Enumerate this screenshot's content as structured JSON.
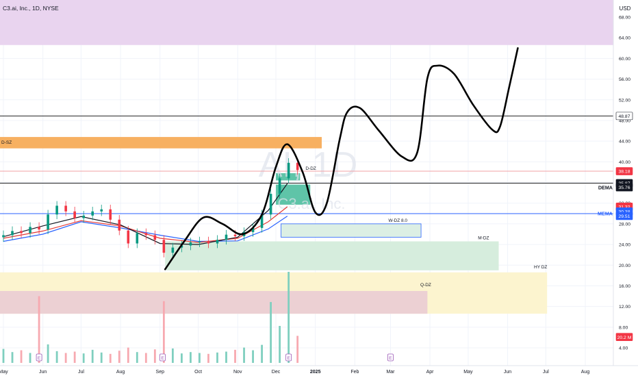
{
  "header": {
    "symbol_title": "C3.ai, Inc., 1D, NYSE",
    "currency": "USD",
    "watermark": "AI, 1D",
    "watermark_sub": "C3.ai, Inc."
  },
  "chart_data": {
    "type": "candlestick",
    "x_labels": [
      {
        "d": "2024-05-01",
        "label": "May"
      },
      {
        "d": "2024-06-01",
        "label": "Jun"
      },
      {
        "d": "2024-07-01",
        "label": "Jul"
      },
      {
        "d": "2024-08-01",
        "label": "Aug"
      },
      {
        "d": "2024-09-01",
        "label": "Sep"
      },
      {
        "d": "2024-10-01",
        "label": "Oct"
      },
      {
        "d": "2024-11-01",
        "label": "Nov"
      },
      {
        "d": "2024-12-01",
        "label": "Dec"
      },
      {
        "d": "2025-01-01",
        "label": "2025"
      },
      {
        "d": "2025-02-01",
        "label": "Feb"
      },
      {
        "d": "2025-03-01",
        "label": "Mar"
      },
      {
        "d": "2025-04-01",
        "label": "Apr"
      },
      {
        "d": "2025-05-01",
        "label": "May"
      },
      {
        "d": "2025-06-01",
        "label": "Jun"
      },
      {
        "d": "2025-07-01",
        "label": "Jul"
      },
      {
        "d": "2025-08-01",
        "label": "Aug"
      }
    ],
    "y_ticks": [
      4,
      8,
      12,
      16,
      20,
      24,
      28,
      32,
      36,
      40,
      44,
      48,
      52,
      56,
      60,
      64,
      68
    ],
    "ylim": [
      1.5,
      71.5
    ],
    "series_close": [
      [
        "2024-05-01",
        25.8
      ],
      [
        "2024-05-08",
        26.6
      ],
      [
        "2024-05-15",
        26.2
      ],
      [
        "2024-05-22",
        27.4
      ],
      [
        "2024-05-29",
        26.9
      ],
      [
        "2024-06-05",
        29.8
      ],
      [
        "2024-06-12",
        31.5
      ],
      [
        "2024-06-19",
        30.4
      ],
      [
        "2024-06-26",
        29.1
      ],
      [
        "2024-07-03",
        29.6
      ],
      [
        "2024-07-10",
        30.4
      ],
      [
        "2024-07-17",
        30.8
      ],
      [
        "2024-07-24",
        28.8
      ],
      [
        "2024-07-31",
        26.7
      ],
      [
        "2024-08-07",
        24.2
      ],
      [
        "2024-08-14",
        26.2
      ],
      [
        "2024-08-21",
        25.8
      ],
      [
        "2024-08-28",
        24.9
      ],
      [
        "2024-09-04",
        22.4
      ],
      [
        "2024-09-11",
        23.4
      ],
      [
        "2024-09-18",
        23.8
      ],
      [
        "2024-09-25",
        24.4
      ],
      [
        "2024-10-02",
        24.6
      ],
      [
        "2024-10-09",
        24.2
      ],
      [
        "2024-10-16",
        24.9
      ],
      [
        "2024-10-23",
        25.9
      ],
      [
        "2024-10-30",
        25.6
      ],
      [
        "2024-11-06",
        26.4
      ],
      [
        "2024-11-13",
        27.2
      ],
      [
        "2024-11-20",
        29.8
      ],
      [
        "2024-11-27",
        33.8
      ],
      [
        "2024-12-04",
        36.8
      ],
      [
        "2024-12-11",
        39.8
      ],
      [
        "2024-12-18",
        38.4
      ]
    ],
    "volume_m": [
      [
        "2024-05-01",
        3.1
      ],
      [
        "2024-05-08",
        2.4
      ],
      [
        "2024-05-15",
        2.8
      ],
      [
        "2024-05-22",
        2.2
      ],
      [
        "2024-05-29",
        14.8
      ],
      [
        "2024-06-05",
        4.1
      ],
      [
        "2024-06-12",
        2.6
      ],
      [
        "2024-06-19",
        2.2
      ],
      [
        "2024-06-26",
        2.5
      ],
      [
        "2024-07-03",
        2.1
      ],
      [
        "2024-07-10",
        2.9
      ],
      [
        "2024-07-17",
        2.3
      ],
      [
        "2024-07-24",
        2.0
      ],
      [
        "2024-07-31",
        2.7
      ],
      [
        "2024-08-07",
        3.4
      ],
      [
        "2024-08-14",
        2.4
      ],
      [
        "2024-08-21",
        2.2
      ],
      [
        "2024-08-28",
        3.0
      ],
      [
        "2024-09-04",
        13.7
      ],
      [
        "2024-09-11",
        3.2
      ],
      [
        "2024-09-18",
        2.1
      ],
      [
        "2024-09-25",
        2.4
      ],
      [
        "2024-10-02",
        2.2
      ],
      [
        "2024-10-09",
        2.0
      ],
      [
        "2024-10-16",
        2.3
      ],
      [
        "2024-10-23",
        2.5
      ],
      [
        "2024-10-30",
        2.9
      ],
      [
        "2024-11-06",
        3.4
      ],
      [
        "2024-11-13",
        2.8
      ],
      [
        "2024-11-20",
        4.0
      ],
      [
        "2024-11-27",
        13.5
      ],
      [
        "2024-12-04",
        8.2
      ],
      [
        "2024-12-11",
        20.2
      ],
      [
        "2024-12-18",
        6.0
      ]
    ],
    "dema_fast_black": [
      [
        "2024-05-01",
        25.5
      ],
      [
        "2024-06-01",
        27.6
      ],
      [
        "2024-07-01",
        29.4
      ],
      [
        "2024-08-01",
        27.8
      ],
      [
        "2024-09-01",
        24.2
      ],
      [
        "2024-10-01",
        24.0
      ],
      [
        "2024-11-01",
        25.4
      ],
      [
        "2024-11-25",
        30.6
      ],
      [
        "2024-12-10",
        35.8
      ]
    ],
    "dema_red": [
      [
        "2024-05-01",
        25.2
      ],
      [
        "2024-06-01",
        26.6
      ],
      [
        "2024-07-01",
        28.6
      ],
      [
        "2024-08-01",
        27.6
      ],
      [
        "2024-09-01",
        25.2
      ],
      [
        "2024-10-01",
        24.4
      ],
      [
        "2024-11-01",
        25.2
      ],
      [
        "2024-11-25",
        28.4
      ],
      [
        "2024-12-10",
        31.3
      ]
    ],
    "ema_blue": [
      [
        "2024-05-01",
        24.6
      ],
      [
        "2024-06-01",
        26.0
      ],
      [
        "2024-07-01",
        28.4
      ],
      [
        "2024-08-01",
        27.2
      ],
      [
        "2024-09-01",
        25.8
      ],
      [
        "2024-10-01",
        24.6
      ],
      [
        "2024-11-01",
        24.7
      ],
      [
        "2024-11-25",
        27.0
      ],
      [
        "2024-12-10",
        29.5
      ]
    ],
    "projection_path": [
      [
        "2024-09-05",
        19.2
      ],
      [
        "2024-09-20",
        24.6
      ],
      [
        "2024-10-05",
        29.2
      ],
      [
        "2024-10-20",
        28.0
      ],
      [
        "2024-11-05",
        26.0
      ],
      [
        "2024-11-20",
        29.8
      ],
      [
        "2024-12-01",
        39.0
      ],
      [
        "2024-12-10",
        43.4
      ],
      [
        "2024-12-22",
        38.0
      ],
      [
        "2025-01-01",
        30.2
      ],
      [
        "2025-01-10",
        32.0
      ],
      [
        "2025-01-20",
        44.2
      ],
      [
        "2025-01-26",
        49.6
      ],
      [
        "2025-02-05",
        50.4
      ],
      [
        "2025-02-20",
        46.0
      ],
      [
        "2025-03-10",
        41.0
      ],
      [
        "2025-03-22",
        41.8
      ],
      [
        "2025-03-30",
        56.2
      ],
      [
        "2025-04-07",
        58.6
      ],
      [
        "2025-04-20",
        57.0
      ],
      [
        "2025-05-05",
        51.0
      ],
      [
        "2025-05-20",
        46.2
      ],
      [
        "2025-05-26",
        46.8
      ],
      [
        "2025-06-02",
        54.2
      ],
      [
        "2025-06-09",
        62.0
      ]
    ],
    "zones": [
      {
        "label": "",
        "from": "2024-04-01",
        "to": "2025-09-30",
        "y_low": 62.6,
        "y_high": 71.5,
        "fill": "#e9d4ef"
      },
      {
        "label": "D-SZ",
        "from": "2024-04-01",
        "to": "2025-01-06",
        "y_low": 42.6,
        "y_high": 44.8,
        "fill": "#f7b061"
      },
      {
        "label": "D-DZ",
        "from": "2024-12-01",
        "to": "2024-12-20",
        "y_low": 36.4,
        "y_high": 37.8,
        "fill": "#5fc4a8"
      },
      {
        "label": "",
        "from": "2024-12-01",
        "to": "2024-12-28",
        "y_low": 31.7,
        "y_high": 35.6,
        "fill": "#5fc4a8"
      },
      {
        "label": "W-DZ 8.0",
        "from": "2024-12-05",
        "to": "2025-03-25",
        "y_low": 25.4,
        "y_high": 28.0,
        "fill": "#dcefe4"
      },
      {
        "label": "M-DZ",
        "from": "2024-09-05",
        "to": "2025-05-25",
        "y_low": 19.0,
        "y_high": 24.6,
        "fill": "#d6eddd"
      },
      {
        "label": "HY DZ",
        "from": "2024-04-01",
        "to": "2025-07-02",
        "y_low": 10.6,
        "y_high": 18.6,
        "fill": "#fcf4cf"
      },
      {
        "label": "Q-DZ",
        "from": "2024-04-01",
        "to": "2025-03-30",
        "y_low": 10.6,
        "y_high": 15.0,
        "fill": "#ecd0d3"
      }
    ],
    "hlines": [
      {
        "y": 48.87,
        "color": "#222222",
        "label": "48.87"
      },
      {
        "y": 38.18,
        "color": "#f2a0a6",
        "label": "38.18"
      },
      {
        "y": 35.87,
        "color": "#222222",
        "label": "35.87"
      },
      {
        "y": 29.97,
        "color": "#2962ff",
        "label": ""
      }
    ],
    "price_tags": [
      {
        "y": 48.87,
        "text": "48.87",
        "bg": "#ffffff",
        "fg": "#131722",
        "border": "#131722"
      },
      {
        "y": 38.18,
        "text": "38.18",
        "bg": "#f23645",
        "fg": "#ffffff",
        "border": "#f23645"
      },
      {
        "y": 35.87,
        "text": "35.87",
        "bg": "#131722",
        "fg": "#ffffff",
        "border": "#131722"
      },
      {
        "y": 35.06,
        "text": "35.76",
        "bg": "#131722",
        "fg": "#ffffff",
        "border": "#131722"
      },
      {
        "y": 31.32,
        "text": "31.32",
        "bg": "#f23645",
        "fg": "#ffffff",
        "border": "#f23645"
      },
      {
        "y": 30.4,
        "text": "30.38",
        "bg": "#2962ff",
        "fg": "#ffffff",
        "border": "#2962ff"
      },
      {
        "y": 29.51,
        "text": "29.51",
        "bg": "#2962ff",
        "fg": "#ffffff",
        "border": "#2962ff"
      },
      {
        "y": 6.1,
        "text": "20.2 M",
        "bg": "#f23645",
        "fg": "#ffffff",
        "border": "#f23645"
      }
    ],
    "side_labels": [
      {
        "y": 35.0,
        "text": "DEMA",
        "color": "#131722"
      },
      {
        "y": 30.0,
        "text": "MEMA",
        "color": "#2962ff"
      }
    ],
    "event_markers": [
      {
        "d": "2024-05-29",
        "kind": "E"
      },
      {
        "d": "2024-09-03",
        "kind": "E"
      },
      {
        "d": "2024-12-11",
        "kind": "E"
      },
      {
        "d": "2025-03-01",
        "kind": "E"
      }
    ],
    "colors": {
      "up": "#089981",
      "down": "#f23645",
      "grid": "#f0f3fa",
      "axis_text": "#131722"
    }
  }
}
